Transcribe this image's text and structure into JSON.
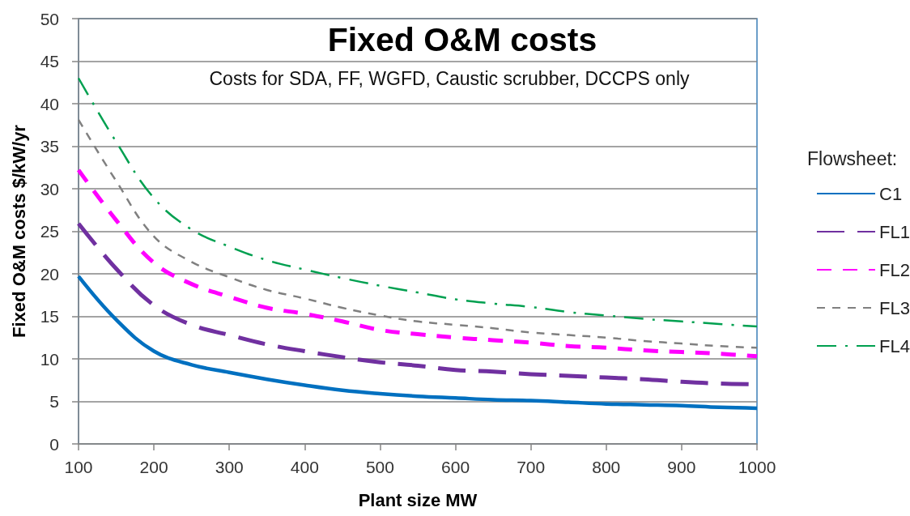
{
  "chart_data": {
    "type": "line",
    "title": "Fixed O&M costs",
    "subtitle": "Costs for SDA, FF, WGFD, Caustic scrubber, DCCPS only",
    "xlabel": "Plant size MW",
    "ylabel": "Fixed O&M costs $/kW/yr",
    "legend_title": "Flowsheet:",
    "x": [
      100,
      150,
      200,
      250,
      300,
      350,
      400,
      450,
      500,
      550,
      600,
      650,
      700,
      750,
      800,
      850,
      900,
      950,
      1000
    ],
    "series": [
      {
        "name": "C1",
        "color": "#0070c0",
        "line_style": "solid",
        "values": [
          19.7,
          14.6,
          10.9,
          9.3,
          8.4,
          7.6,
          6.9,
          6.3,
          5.9,
          5.6,
          5.4,
          5.2,
          5.1,
          4.9,
          4.7,
          4.6,
          4.5,
          4.3,
          4.2
        ]
      },
      {
        "name": "FL1",
        "color": "#7030a0",
        "line_style": "longdash",
        "values": [
          25.9,
          20.6,
          16.3,
          14.0,
          12.8,
          11.7,
          10.9,
          10.2,
          9.6,
          9.2,
          8.7,
          8.5,
          8.2,
          8.0,
          7.8,
          7.6,
          7.3,
          7.1,
          7.0
        ]
      },
      {
        "name": "FL2",
        "color": "#ff00ff",
        "line_style": "dashed",
        "values": [
          32.2,
          26.3,
          21.3,
          18.8,
          17.3,
          16.0,
          15.3,
          14.4,
          13.4,
          12.9,
          12.5,
          12.2,
          11.9,
          11.5,
          11.3,
          11.0,
          10.8,
          10.6,
          10.3
        ]
      },
      {
        "name": "FL3",
        "color": "#808080",
        "line_style": "dotted",
        "values": [
          38.1,
          30.9,
          24.4,
          21.4,
          19.6,
          18.1,
          17.1,
          16.0,
          15.1,
          14.4,
          14.0,
          13.6,
          13.1,
          12.8,
          12.5,
          12.1,
          11.8,
          11.5,
          11.3
        ]
      },
      {
        "name": "FL4",
        "color": "#00a050",
        "line_style": "dashdot",
        "values": [
          43.0,
          35.5,
          28.9,
          25.2,
          23.2,
          21.6,
          20.5,
          19.5,
          18.6,
          17.8,
          17.0,
          16.5,
          16.1,
          15.5,
          15.1,
          14.7,
          14.4,
          14.1,
          13.8
        ]
      }
    ],
    "xlim": [
      100,
      1000
    ],
    "xticks": [
      100,
      200,
      300,
      400,
      500,
      600,
      700,
      800,
      900,
      1000
    ],
    "ylim": [
      0,
      50
    ],
    "yticks": [
      0,
      5,
      10,
      15,
      20,
      25,
      30,
      35,
      40,
      45,
      50
    ],
    "grid": "y",
    "legend": "right",
    "marker": "none"
  }
}
